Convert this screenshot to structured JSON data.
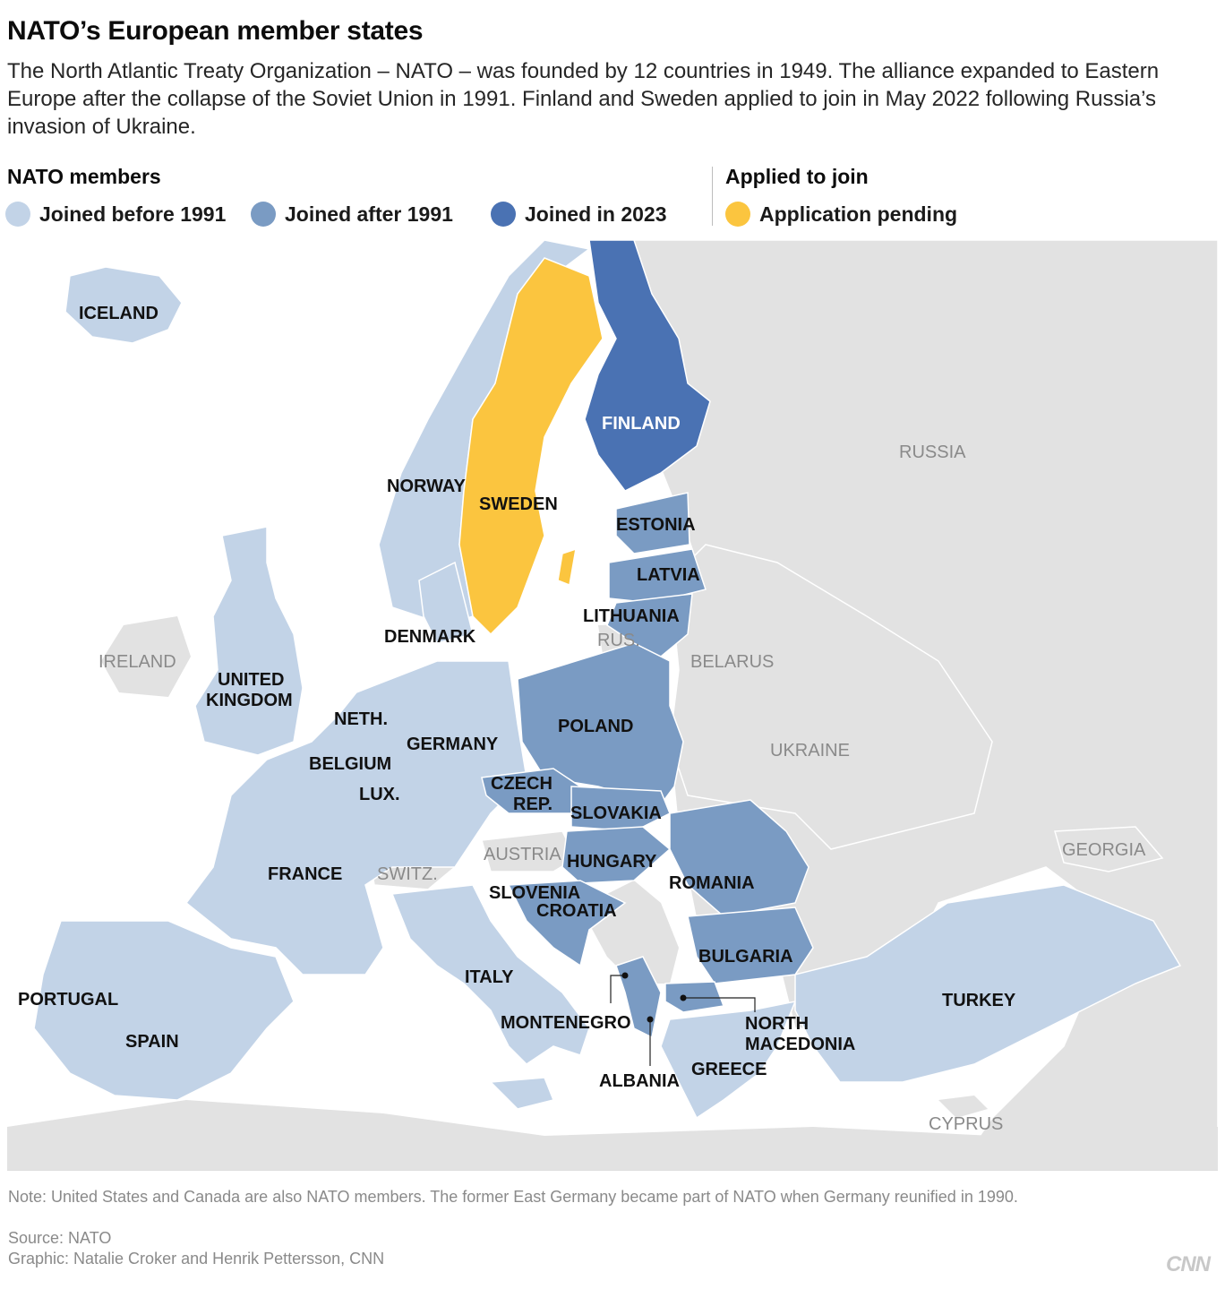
{
  "header": {
    "title": "NATO’s European member states",
    "subtitle": "The North Atlantic Treaty Organization – NATO – was founded by 12 countries in 1949. The alliance expanded to Eastern Europe after the collapse of the Soviet Union in 1991. Finland and Sweden applied to join in May 2022 following Russia’s invasion of Ukraine."
  },
  "legend": {
    "members_heading": "NATO members",
    "applied_heading": "Applied to join",
    "items": [
      {
        "label": "Joined before 1991",
        "color": "#c2d3e7"
      },
      {
        "label": "Joined after 1991",
        "color": "#7a9bc3"
      },
      {
        "label": "Joined in 2023",
        "color": "#4a72b3"
      },
      {
        "label": "Application pending",
        "color": "#fbc53f"
      }
    ]
  },
  "colors": {
    "non_member_land": "#e2e2e2",
    "sea": "#ffffff"
  },
  "map": {
    "labels": {
      "iceland": "ICELAND",
      "finland": "FINLAND",
      "russia": "RUSSIA",
      "norway": "NORWAY",
      "sweden": "SWEDEN",
      "estonia": "ESTONIA",
      "latvia": "LATVIA",
      "lithuania": "LITHUANIA",
      "rus": "RUS.",
      "belarus": "BELARUS",
      "denmark": "DENMARK",
      "ireland": "IRELAND",
      "uk_line1": "UNITED",
      "uk_line2": "KINGDOM",
      "netherlands": "NETH.",
      "germany": "GERMANY",
      "poland": "POLAND",
      "ukraine": "UKRAINE",
      "belgium": "BELGIUM",
      "czech_line1": "CZECH",
      "czech_line2": "REP.",
      "luxembourg": "LUX.",
      "slovakia": "SLOVAKIA",
      "austria": "AUSTRIA",
      "georgia": "GEORGIA",
      "hungary": "HUNGARY",
      "france": "FRANCE",
      "switzerland": "SWITZ.",
      "romania": "ROMANIA",
      "slovenia": "SLOVENIA",
      "croatia": "CROATIA",
      "bulgaria": "BULGARIA",
      "italy": "ITALY",
      "portugal": "PORTUGAL",
      "turkey": "TURKEY",
      "montenegro": "MONTENEGRO",
      "north_macedonia_line1": "NORTH",
      "north_macedonia_line2": "MACEDONIA",
      "spain": "SPAIN",
      "greece": "GREECE",
      "albania": "ALBANIA",
      "cyprus": "CYPRUS"
    }
  },
  "footer": {
    "note": "Note: United States and Canada are also NATO members. The former East Germany became part of NATO when Germany reunified in 1990.",
    "source": "Source: NATO",
    "graphic": "Graphic: Natalie Croker and Henrik Pettersson, CNN",
    "logo": "CNN"
  }
}
